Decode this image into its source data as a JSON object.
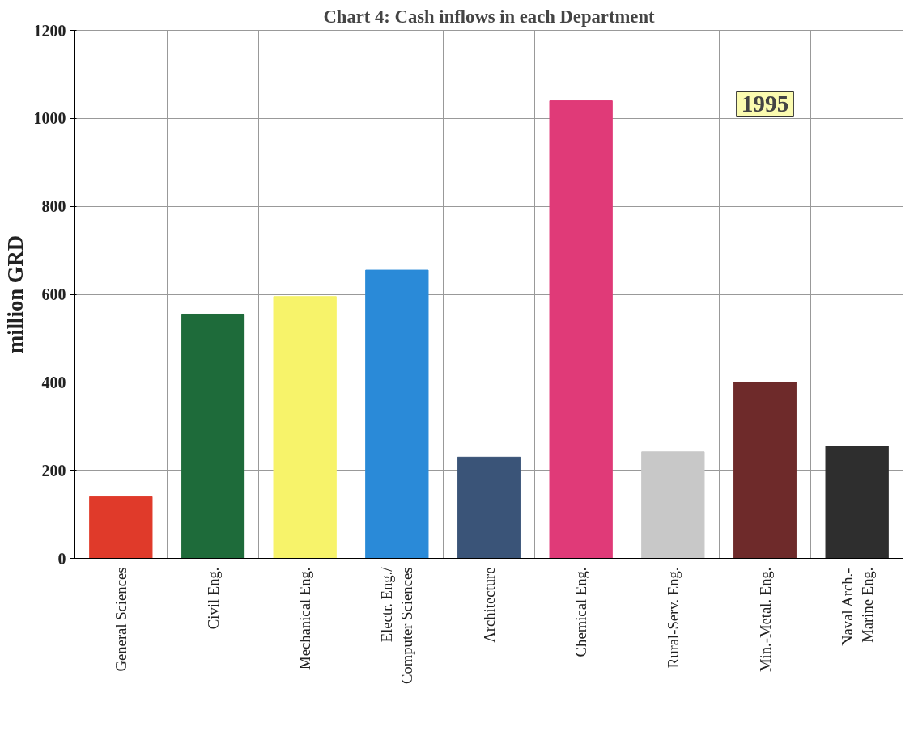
{
  "chart_data": {
    "type": "bar",
    "title": "Chart 4: Cash inflows in each Department",
    "ylabel": "million GRD",
    "categories": [
      "General Sciences",
      "Civil Eng.",
      "Mechanical Eng.",
      "Electr. Eng./\nComputer Sciences",
      "Architecture",
      "Chemical Eng.",
      "Rural-Serv. Eng.",
      "Min.-Metal. Eng.",
      "Naval Arch.-\nMarine Eng."
    ],
    "values": [
      140,
      555,
      595,
      655,
      230,
      1040,
      242,
      400,
      255
    ],
    "colors": [
      "#e03a2a",
      "#1e6b3a",
      "#f7f36a",
      "#2a8ad8",
      "#3a5478",
      "#e03a78",
      "#c8c8c8",
      "#6e2a2a",
      "#2e2e2e"
    ],
    "ylim": [
      0,
      1200
    ],
    "yticks": [
      0,
      200,
      400,
      600,
      800,
      1000,
      1200
    ],
    "grid": true,
    "annotations": [
      "1995"
    ]
  }
}
